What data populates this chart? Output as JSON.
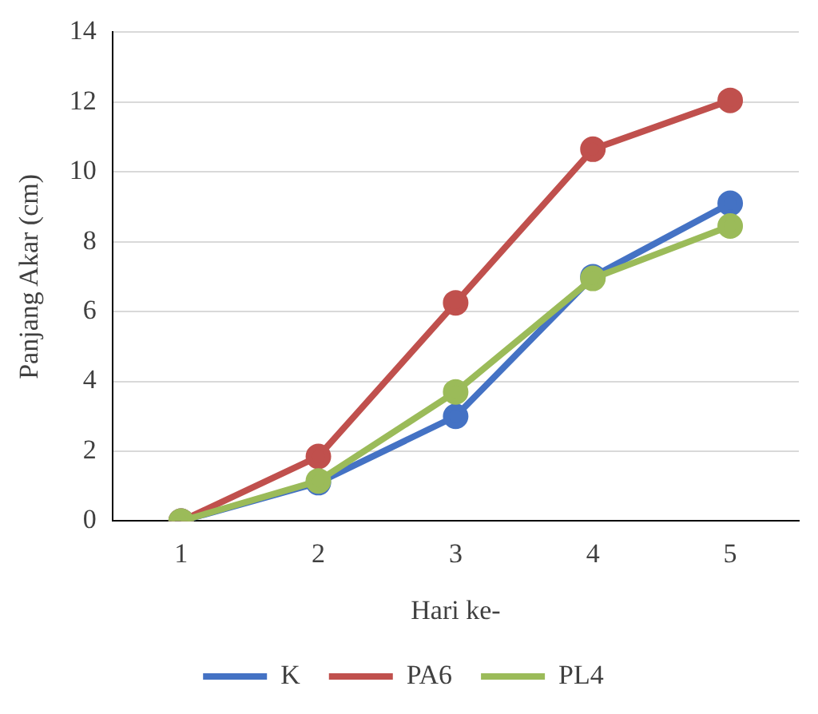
{
  "chart_data": {
    "type": "line",
    "xlabel": "Hari ke-",
    "ylabel": "Panjang Akar (cm)",
    "categories": [
      "1",
      "2",
      "3",
      "4",
      "5"
    ],
    "series": [
      {
        "name": "K",
        "color": "#4472c4",
        "values": [
          0,
          1.1,
          3.0,
          7.0,
          9.1
        ]
      },
      {
        "name": "PA6",
        "color": "#c0504d",
        "values": [
          0,
          1.85,
          6.25,
          10.65,
          12.05
        ]
      },
      {
        "name": "PL4",
        "color": "#9bbb59",
        "values": [
          0,
          1.15,
          3.7,
          6.95,
          8.45
        ]
      }
    ],
    "ylim": [
      0,
      14
    ],
    "yticks": [
      0,
      2,
      4,
      6,
      8,
      10,
      12,
      14
    ],
    "grid": "y",
    "legend": "bottom",
    "marker": "circle",
    "line_style": "solid"
  }
}
